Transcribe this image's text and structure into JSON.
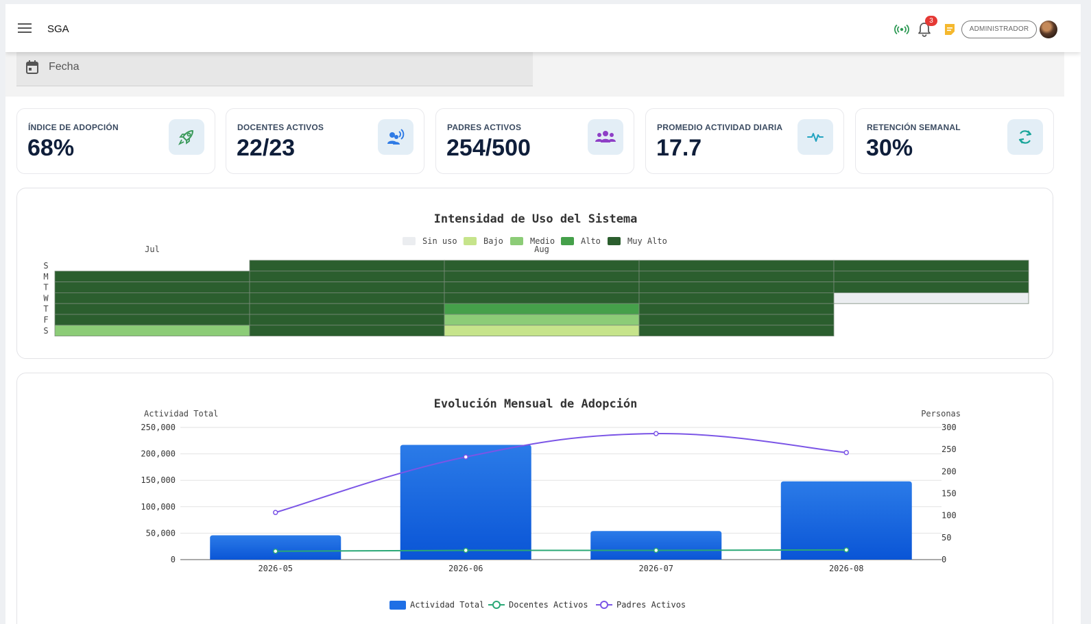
{
  "header": {
    "brand": "SGA",
    "notification_count": "3",
    "role_label": "ADMINISTRADOR"
  },
  "filters": {
    "date_label": "Fecha"
  },
  "kpis": [
    {
      "label": "ÍNDICE DE ADOPCIÓN",
      "value": "68%",
      "icon": "rocket-icon",
      "color": "#3a9a5a"
    },
    {
      "label": "DOCENTES ACTIVOS",
      "value": "22/23",
      "icon": "voice-users-icon",
      "color": "#2f7be5"
    },
    {
      "label": "PADRES ACTIVOS",
      "value": "254/500",
      "icon": "group-icon",
      "color": "#8e3fc6"
    },
    {
      "label": "PROMEDIO ACTIVIDAD DIARIA",
      "value": "17.7",
      "icon": "pulse-icon",
      "color": "#22a3c0"
    },
    {
      "label": "RETENCIÓN SEMANAL",
      "value": "30%",
      "icon": "refresh-icon",
      "color": "#1aa59a"
    }
  ],
  "chart_data": [
    {
      "type": "heatmap",
      "title": "Intensidad de Uso del Sistema",
      "legend": [
        {
          "name": "Sin uso",
          "color": "#ebedf0"
        },
        {
          "name": "Bajo",
          "color": "#c6e48b"
        },
        {
          "name": "Medio",
          "color": "#8ccc77"
        },
        {
          "name": "Alto",
          "color": "#45a04a"
        },
        {
          "name": "Muy Alto",
          "color": "#2b5e2e"
        }
      ],
      "month_labels": [
        "Jul",
        "Aug"
      ],
      "day_labels": [
        "S",
        "M",
        "T",
        "W",
        "T",
        "F",
        "S"
      ],
      "weeks": [
        [
          null,
          4,
          4,
          4,
          4,
          4,
          2
        ],
        [
          4,
          4,
          4,
          4,
          4,
          4,
          4
        ],
        [
          4,
          4,
          4,
          4,
          3,
          2,
          1
        ],
        [
          4,
          4,
          4,
          4,
          4,
          4,
          4
        ],
        [
          4,
          4,
          4,
          0,
          null,
          null,
          null
        ]
      ]
    },
    {
      "type": "bar",
      "title": "Evolución Mensual de Adopción",
      "categories": [
        "2026-05",
        "2026-06",
        "2026-07",
        "2026-08"
      ],
      "ylabel": "Actividad Total",
      "y2label": "Personas",
      "ylim": [
        0,
        250000
      ],
      "y2lim": [
        0,
        300
      ],
      "yticks": [
        "250,000",
        "200,000",
        "150,000",
        "100,000",
        "50,000",
        "0"
      ],
      "y2ticks": [
        "300",
        "250",
        "200",
        "150",
        "100",
        "50",
        "0"
      ],
      "series": [
        {
          "name": "Actividad Total",
          "type": "bar",
          "axis": "left",
          "color": "#1f6fe5",
          "values": [
            46000,
            217000,
            54000,
            148000
          ]
        },
        {
          "name": "Docentes Activos",
          "type": "line",
          "axis": "right",
          "color": "#2aa876",
          "values": [
            19,
            21,
            21,
            22
          ]
        },
        {
          "name": "Padres Activos",
          "type": "line",
          "axis": "right",
          "color": "#7b55e6",
          "values": [
            107,
            233,
            286,
            243
          ]
        }
      ]
    }
  ]
}
